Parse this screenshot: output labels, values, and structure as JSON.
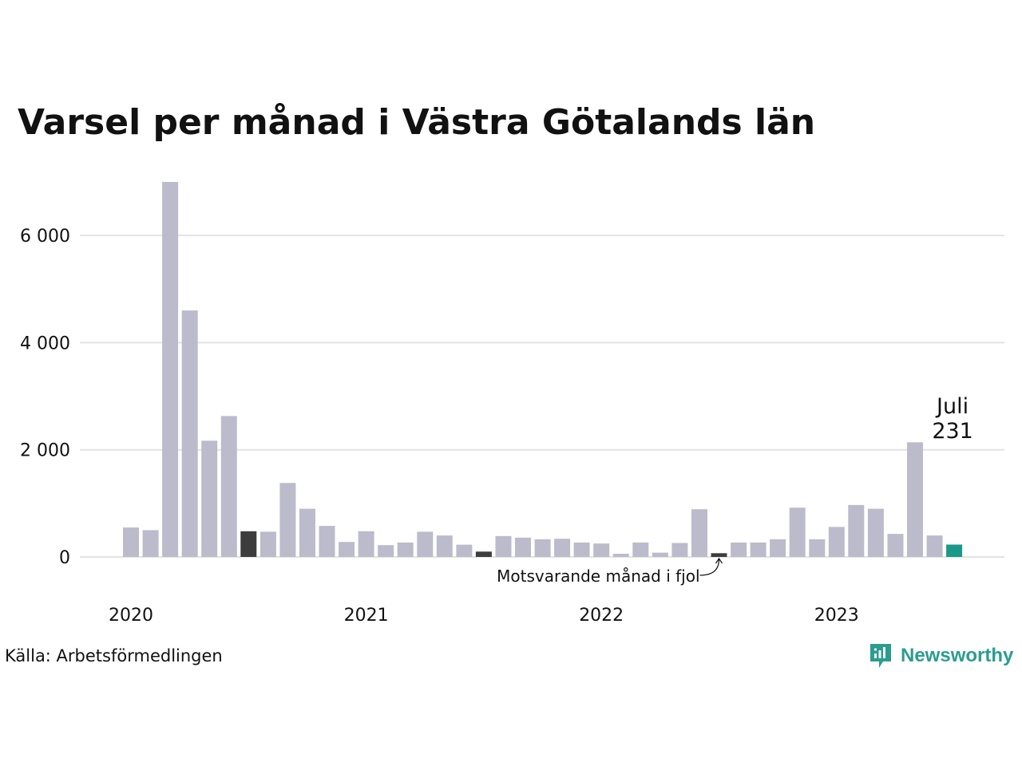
{
  "title": "Varsel per månad i Västra Götalands län",
  "source": "Källa: Arbetsförmedlingen",
  "brand": {
    "name": "Newsworthy",
    "icon": "newsworthy-logo-icon"
  },
  "colors": {
    "bar": "#bcbbcb",
    "highlight_prev_year": "#3d3d3d",
    "current": "#1a9988",
    "grid": "#e3e3e3",
    "brand": "#2a9d8f"
  },
  "chart_data": {
    "type": "bar",
    "title": "Varsel per månad i Västra Götalands län",
    "xlabel": "",
    "ylabel": "",
    "ylim": [
      0,
      7000
    ],
    "yticks": [
      0,
      2000,
      4000,
      6000
    ],
    "ytick_labels": [
      "0",
      "2 000",
      "4 000",
      "6 000"
    ],
    "grid": true,
    "year_labels": [
      {
        "label": "2020",
        "index": 0
      },
      {
        "label": "2021",
        "index": 12
      },
      {
        "label": "2022",
        "index": 24
      },
      {
        "label": "2023",
        "index": 36
      }
    ],
    "categories": [
      "2020-01",
      "2020-02",
      "2020-03",
      "2020-04",
      "2020-05",
      "2020-06",
      "2020-07",
      "2020-08",
      "2020-09",
      "2020-10",
      "2020-11",
      "2020-12",
      "2021-01",
      "2021-02",
      "2021-03",
      "2021-04",
      "2021-05",
      "2021-06",
      "2021-07",
      "2021-08",
      "2021-09",
      "2021-10",
      "2021-11",
      "2021-12",
      "2022-01",
      "2022-02",
      "2022-03",
      "2022-04",
      "2022-05",
      "2022-06",
      "2022-07",
      "2022-08",
      "2022-09",
      "2022-10",
      "2022-11",
      "2022-12",
      "2023-01",
      "2023-02",
      "2023-03",
      "2023-04",
      "2023-05",
      "2023-06",
      "2023-07"
    ],
    "values": [
      550,
      500,
      7000,
      4600,
      2170,
      2630,
      480,
      470,
      1380,
      900,
      580,
      280,
      480,
      220,
      270,
      470,
      400,
      230,
      100,
      390,
      360,
      330,
      340,
      270,
      250,
      60,
      270,
      80,
      260,
      890,
      70,
      270,
      270,
      330,
      920,
      330,
      560,
      970,
      900,
      430,
      2140,
      400,
      231
    ],
    "highlight_prev_year": [
      6,
      18,
      30
    ],
    "current_index": 42,
    "annotations": {
      "current_month": "Juli",
      "current_value": "231",
      "prev_year": "Motsvarande månad i fjol"
    }
  }
}
